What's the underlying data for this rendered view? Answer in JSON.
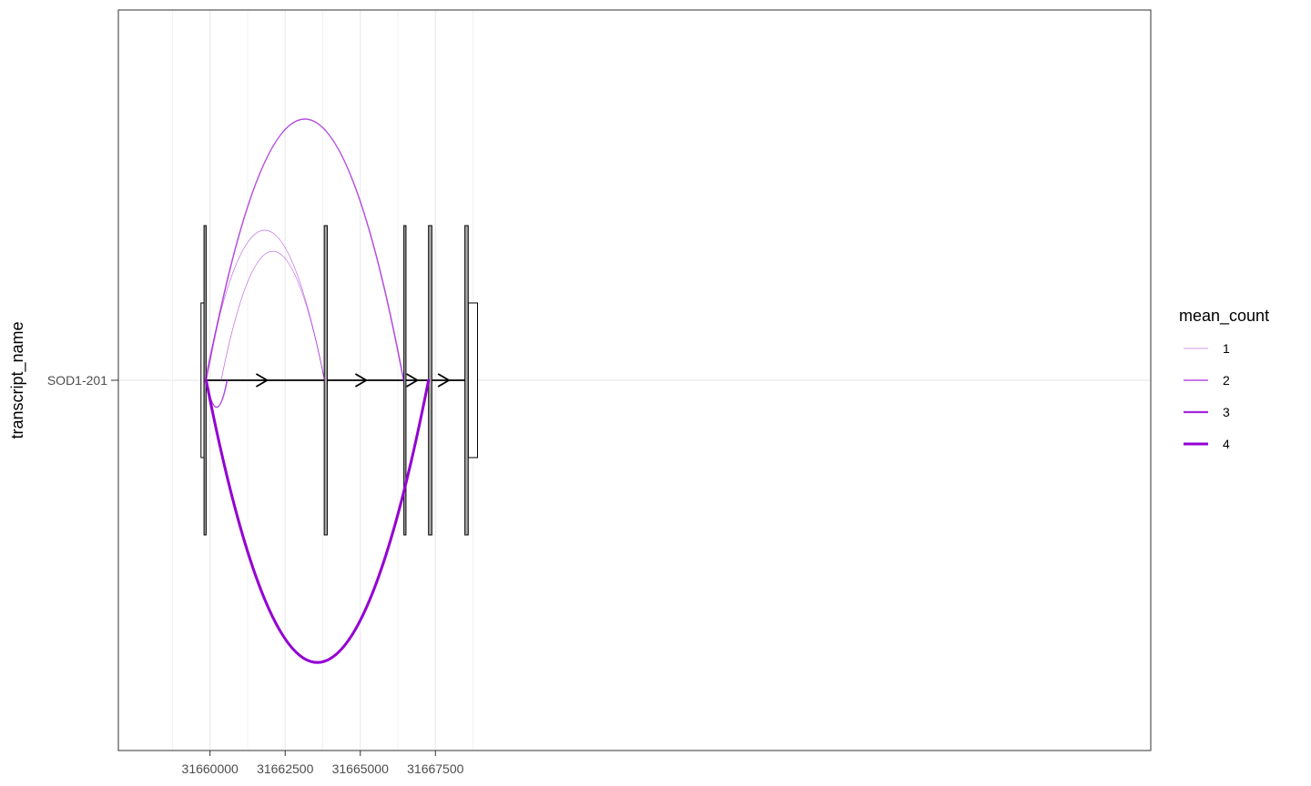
{
  "chart_data": {
    "type": "line",
    "title": "",
    "xlabel": "",
    "ylabel": "transcript_name",
    "y_categories": [
      "SOD1-201"
    ],
    "xlim": [
      31656950,
      31691300
    ],
    "x_ticks": [
      31660000,
      31662500,
      31665000,
      31667500
    ],
    "x_tick_labels": [
      "31660000",
      "31662500",
      "31665000",
      "31667500"
    ],
    "grid": true,
    "legend": {
      "title": "mean_count",
      "placement": "right",
      "entries": [
        {
          "label": "1",
          "value": 1
        },
        {
          "label": "2",
          "value": 2
        },
        {
          "label": "3",
          "value": 3
        },
        {
          "label": "4",
          "value": 4
        }
      ]
    },
    "transcript": {
      "name": "SOD1-201",
      "strand": "+",
      "start": 31659700,
      "end": 31668900,
      "exons": [
        {
          "start": 31659800,
          "end": 31659870
        },
        {
          "start": 31663800,
          "end": 31663900
        },
        {
          "start": 31666450,
          "end": 31666520
        },
        {
          "start": 31667270,
          "end": 31667380
        },
        {
          "start": 31668480,
          "end": 31668590
        }
      ],
      "utrs": [
        {
          "start": 31659700,
          "end": 31659800
        },
        {
          "start": 31668590,
          "end": 31668900
        }
      ],
      "direction_arrows": [
        31661900,
        31665200,
        31666900,
        31667950
      ]
    },
    "junctions": [
      {
        "start": 31659830,
        "end": 31663810,
        "mean_count": 1,
        "side": "above",
        "height": 0.5
      },
      {
        "start": 31660370,
        "end": 31663810,
        "mean_count": 1,
        "side": "above",
        "height": 0.43
      },
      {
        "start": 31659870,
        "end": 31666440,
        "mean_count": 2,
        "side": "above",
        "height": 0.87
      },
      {
        "start": 31659870,
        "end": 31660570,
        "mean_count": 2,
        "side": "below",
        "height": 0.09
      },
      {
        "start": 31659870,
        "end": 31667270,
        "mean_count": 4,
        "side": "below",
        "height": 0.94
      }
    ],
    "colors": {
      "junction": "#9400D3",
      "exon_fill": "#A9A9A9",
      "line": "#000000",
      "grid_major": "#EBEBEB",
      "grid_minor": "#F2F2F2",
      "panel_border": "#333333"
    }
  }
}
